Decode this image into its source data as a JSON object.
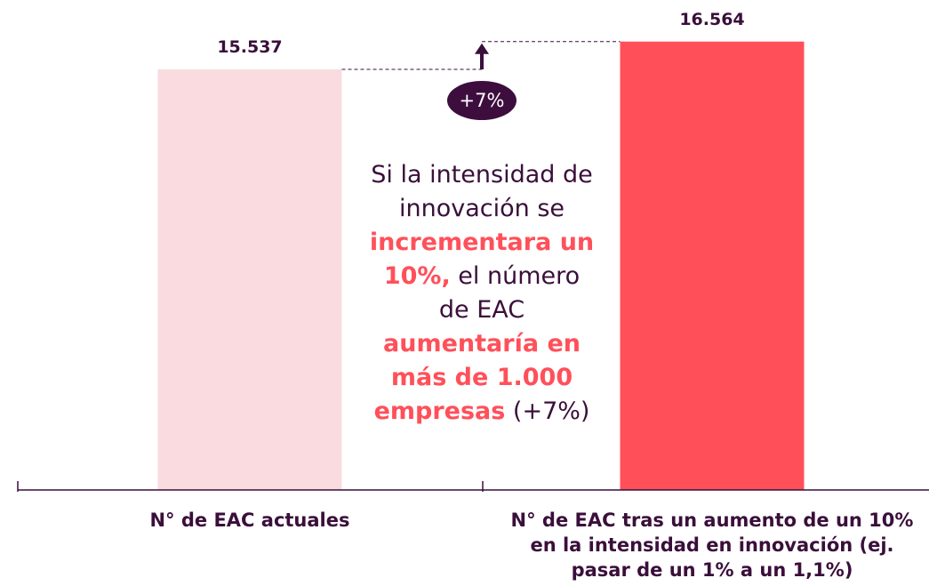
{
  "chart_data": {
    "type": "bar",
    "categories": [
      "N° de EAC actuales",
      "N° de EAC tras un aumento de un 10% en la intensidad en innovación (ej. pasar de un 1% a un 1,1%)"
    ],
    "values": [
      15537,
      16564
    ],
    "value_labels": [
      "15.537",
      "16.564"
    ],
    "colors": [
      "#f9dbe0",
      "#ff505a"
    ],
    "ylim": [
      0,
      18100
    ],
    "delta_label": "+7%",
    "annotation": {
      "lines": [
        [
          {
            "text": "Si la intensidad de",
            "highlight": false
          }
        ],
        [
          {
            "text": "innovación se",
            "highlight": false
          }
        ],
        [
          {
            "text": "incrementara un",
            "highlight": true
          }
        ],
        [
          {
            "text": "10%,",
            "highlight": true
          },
          {
            "text": " el número",
            "highlight": false
          }
        ],
        [
          {
            "text": "de EAC",
            "highlight": false
          }
        ],
        [
          {
            "text": "aumentaría en",
            "highlight": true
          }
        ],
        [
          {
            "text": "más de 1.000",
            "highlight": true
          }
        ],
        [
          {
            "text": "empresas",
            "highlight": true
          },
          {
            "text": " (+7%)",
            "highlight": false
          }
        ]
      ]
    }
  }
}
